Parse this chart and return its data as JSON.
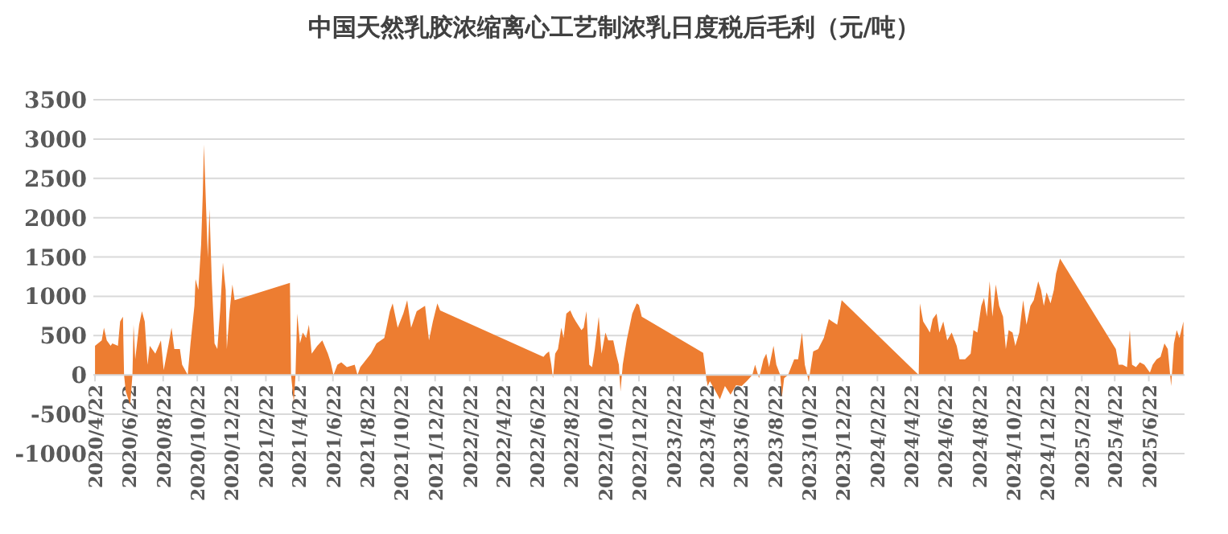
{
  "chart_data": {
    "type": "area",
    "title": "中国天然乳胶浓缩离心工艺制浓乳日度税后毛利（元/吨）",
    "grid": "y",
    "xlim": [
      "2020-04-19",
      "2025-08-25"
    ],
    "ylim": [
      -1000,
      3500
    ],
    "yticks": [
      -1000,
      -500,
      0,
      500,
      1000,
      1500,
      2000,
      2500,
      3000,
      3500
    ],
    "xticks": [
      {
        "value": "2020-04-22",
        "label": "2020/4/22"
      },
      {
        "value": "2020-06-22",
        "label": "2020/6/22"
      },
      {
        "value": "2020-08-22",
        "label": "2020/8/22"
      },
      {
        "value": "2020-10-22",
        "label": "2020/10/22"
      },
      {
        "value": "2020-12-22",
        "label": "2020/12/22"
      },
      {
        "value": "2021-02-22",
        "label": "2021/2/22"
      },
      {
        "value": "2021-04-22",
        "label": "2021/4/22"
      },
      {
        "value": "2021-06-22",
        "label": "2021/6/22"
      },
      {
        "value": "2021-08-22",
        "label": "2021/8/22"
      },
      {
        "value": "2021-10-22",
        "label": "2021/10/22"
      },
      {
        "value": "2021-12-22",
        "label": "2021/12/22"
      },
      {
        "value": "2022-02-22",
        "label": "2022/2/22"
      },
      {
        "value": "2022-04-22",
        "label": "2022/4/22"
      },
      {
        "value": "2022-06-22",
        "label": "2022/6/22"
      },
      {
        "value": "2022-08-22",
        "label": "2022/8/22"
      },
      {
        "value": "2022-10-22",
        "label": "2022/10/22"
      },
      {
        "value": "2022-12-22",
        "label": "2022/12/22"
      },
      {
        "value": "2023-02-22",
        "label": "2023/2/22"
      },
      {
        "value": "2023-04-22",
        "label": "2023/4/22"
      },
      {
        "value": "2023-06-22",
        "label": "2023/6/22"
      },
      {
        "value": "2023-08-22",
        "label": "2023/8/22"
      },
      {
        "value": "2023-10-22",
        "label": "2023/10/22"
      },
      {
        "value": "2023-12-22",
        "label": "2023/12/22"
      },
      {
        "value": "2024-02-22",
        "label": "2024/2/22"
      },
      {
        "value": "2024-04-22",
        "label": "2024/4/22"
      },
      {
        "value": "2024-06-22",
        "label": "2024/6/22"
      },
      {
        "value": "2024-08-22",
        "label": "2024/8/22"
      },
      {
        "value": "2024-10-22",
        "label": "2024/10/22"
      },
      {
        "value": "2024-12-22",
        "label": "2024/12/22"
      },
      {
        "value": "2025-02-22",
        "label": "2025/2/22"
      },
      {
        "value": "2025-04-22",
        "label": "2025/4/22"
      },
      {
        "value": "2025-06-22",
        "label": "2025/6/22"
      }
    ],
    "series": [
      {
        "color": "#ed7d31",
        "x": [
          "2020-04-22",
          "2020-05-04",
          "2020-05-08",
          "2020-05-13",
          "2020-05-20",
          "2020-05-23",
          "2020-06-02",
          "2020-06-06",
          "2020-06-11",
          "2020-06-13",
          "2020-06-16",
          "2020-06-24",
          "2020-06-28",
          "2020-06-30",
          "2020-07-03",
          "2020-07-10",
          "2020-07-15",
          "2020-07-20",
          "2020-07-25",
          "2020-07-29",
          "2020-08-08",
          "2020-08-18",
          "2020-08-23",
          "2020-09-01",
          "2020-09-06",
          "2020-09-11",
          "2020-09-21",
          "2020-09-25",
          "2020-10-05",
          "2020-10-10",
          "2020-10-17",
          "2020-10-19",
          "2020-10-24",
          "2020-10-29",
          "2020-11-01",
          "2020-11-03",
          "2020-11-06",
          "2020-11-10",
          "2020-11-13",
          "2020-11-17",
          "2020-11-22",
          "2020-11-27",
          "2020-12-02",
          "2020-12-07",
          "2020-12-12",
          "2020-12-14",
          "2020-12-19",
          "2020-12-24",
          "2020-12-28",
          "2021-04-06",
          "2021-04-08",
          "2021-04-13",
          "2021-04-16",
          "2021-04-19",
          "2021-04-24",
          "2021-04-29",
          "2021-05-05",
          "2021-05-10",
          "2021-05-15",
          "2021-05-25",
          "2021-06-03",
          "2021-06-13",
          "2021-06-18",
          "2021-06-23",
          "2021-06-30",
          "2021-07-07",
          "2021-07-17",
          "2021-07-31",
          "2021-08-05",
          "2021-08-10",
          "2021-08-29",
          "2021-09-08",
          "2021-09-22",
          "2021-10-02",
          "2021-10-07",
          "2021-10-16",
          "2021-10-26",
          "2021-11-02",
          "2021-11-09",
          "2021-11-19",
          "2021-12-04",
          "2021-12-11",
          "2021-12-18",
          "2021-12-26",
          "2021-12-31",
          "2022-07-04",
          "2022-07-09",
          "2022-07-14",
          "2022-07-18",
          "2022-07-21",
          "2022-07-25",
          "2022-07-30",
          "2022-08-05",
          "2022-08-09",
          "2022-08-14",
          "2022-08-21",
          "2022-08-26",
          "2022-08-31",
          "2022-09-10",
          "2022-09-14",
          "2022-09-19",
          "2022-09-24",
          "2022-09-29",
          "2022-10-04",
          "2022-10-11",
          "2022-10-16",
          "2022-10-23",
          "2022-10-28",
          "2022-11-06",
          "2022-11-11",
          "2022-11-16",
          "2022-11-19",
          "2022-11-23",
          "2022-11-30",
          "2022-12-10",
          "2022-12-18",
          "2022-12-22",
          "2022-12-27",
          "2023-04-16",
          "2023-04-21",
          "2023-04-24",
          "2023-04-28",
          "2023-05-06",
          "2023-05-16",
          "2023-05-25",
          "2023-06-04",
          "2023-06-14",
          "2023-06-24",
          "2023-07-03",
          "2023-07-13",
          "2023-07-18",
          "2023-07-25",
          "2023-08-02",
          "2023-08-07",
          "2023-08-12",
          "2023-08-20",
          "2023-08-25",
          "2023-09-01",
          "2023-09-04",
          "2023-09-08",
          "2023-09-15",
          "2023-09-26",
          "2023-10-03",
          "2023-10-10",
          "2023-10-15",
          "2023-10-22",
          "2023-10-30",
          "2023-11-08",
          "2023-11-18",
          "2023-11-27",
          "2023-12-03",
          "2023-12-12",
          "2023-12-20",
          "2024-05-06",
          "2024-05-08",
          "2024-05-14",
          "2024-05-21",
          "2024-05-26",
          "2024-05-31",
          "2024-06-07",
          "2024-06-12",
          "2024-06-19",
          "2024-06-26",
          "2024-07-04",
          "2024-07-13",
          "2024-07-18",
          "2024-07-28",
          "2024-08-07",
          "2024-08-12",
          "2024-08-19",
          "2024-08-26",
          "2024-08-31",
          "2024-09-05",
          "2024-09-10",
          "2024-09-15",
          "2024-09-21",
          "2024-09-27",
          "2024-10-04",
          "2024-10-09",
          "2024-10-14",
          "2024-10-21",
          "2024-10-26",
          "2024-11-02",
          "2024-11-09",
          "2024-11-15",
          "2024-11-22",
          "2024-11-28",
          "2024-12-06",
          "2024-12-11",
          "2024-12-16",
          "2024-12-21",
          "2024-12-28",
          "2025-01-03",
          "2025-01-07",
          "2025-01-14",
          "2025-04-24",
          "2025-04-29",
          "2025-05-06",
          "2025-05-14",
          "2025-05-19",
          "2025-05-23",
          "2025-05-30",
          "2025-06-06",
          "2025-06-14",
          "2025-06-24",
          "2025-06-29",
          "2025-07-06",
          "2025-07-13",
          "2025-07-20",
          "2025-07-26",
          "2025-08-01",
          "2025-08-06",
          "2025-08-11",
          "2025-08-16",
          "2025-08-23"
        ],
        "values": [
          370,
          440,
          600,
          440,
          370,
          400,
          370,
          680,
          740,
          0,
          -210,
          -380,
          0,
          640,
          200,
          640,
          810,
          680,
          130,
          370,
          270,
          440,
          60,
          400,
          600,
          330,
          330,
          130,
          0,
          400,
          880,
          1220,
          1080,
          1660,
          2310,
          2930,
          2310,
          1490,
          2110,
          1220,
          400,
          330,
          810,
          1430,
          1080,
          330,
          810,
          1150,
          950,
          1170,
          0,
          -350,
          0,
          780,
          400,
          540,
          470,
          640,
          270,
          370,
          440,
          270,
          160,
          0,
          130,
          160,
          100,
          130,
          0,
          100,
          270,
          400,
          470,
          810,
          910,
          600,
          780,
          950,
          600,
          810,
          880,
          440,
          680,
          910,
          820,
          230,
          270,
          300,
          130,
          -40,
          270,
          330,
          600,
          470,
          780,
          820,
          740,
          680,
          570,
          600,
          810,
          130,
          100,
          330,
          740,
          270,
          540,
          440,
          440,
          270,
          130,
          -210,
          130,
          440,
          780,
          910,
          890,
          740,
          280,
          0,
          -140,
          -80,
          -180,
          -310,
          -140,
          -250,
          -130,
          -140,
          -80,
          0,
          130,
          -40,
          200,
          270,
          100,
          370,
          130,
          0,
          -280,
          -40,
          0,
          200,
          200,
          540,
          130,
          -80,
          300,
          330,
          470,
          710,
          680,
          640,
          950,
          0,
          910,
          680,
          600,
          540,
          710,
          780,
          540,
          680,
          440,
          540,
          370,
          200,
          200,
          270,
          570,
          540,
          880,
          980,
          740,
          1190,
          740,
          1150,
          880,
          740,
          330,
          570,
          540,
          370,
          540,
          950,
          640,
          880,
          950,
          1190,
          1080,
          880,
          1050,
          910,
          1080,
          1290,
          1480,
          330,
          130,
          130,
          100,
          570,
          130,
          100,
          160,
          130,
          30,
          130,
          200,
          230,
          400,
          330,
          -140,
          400,
          570,
          470,
          680
        ]
      }
    ]
  }
}
